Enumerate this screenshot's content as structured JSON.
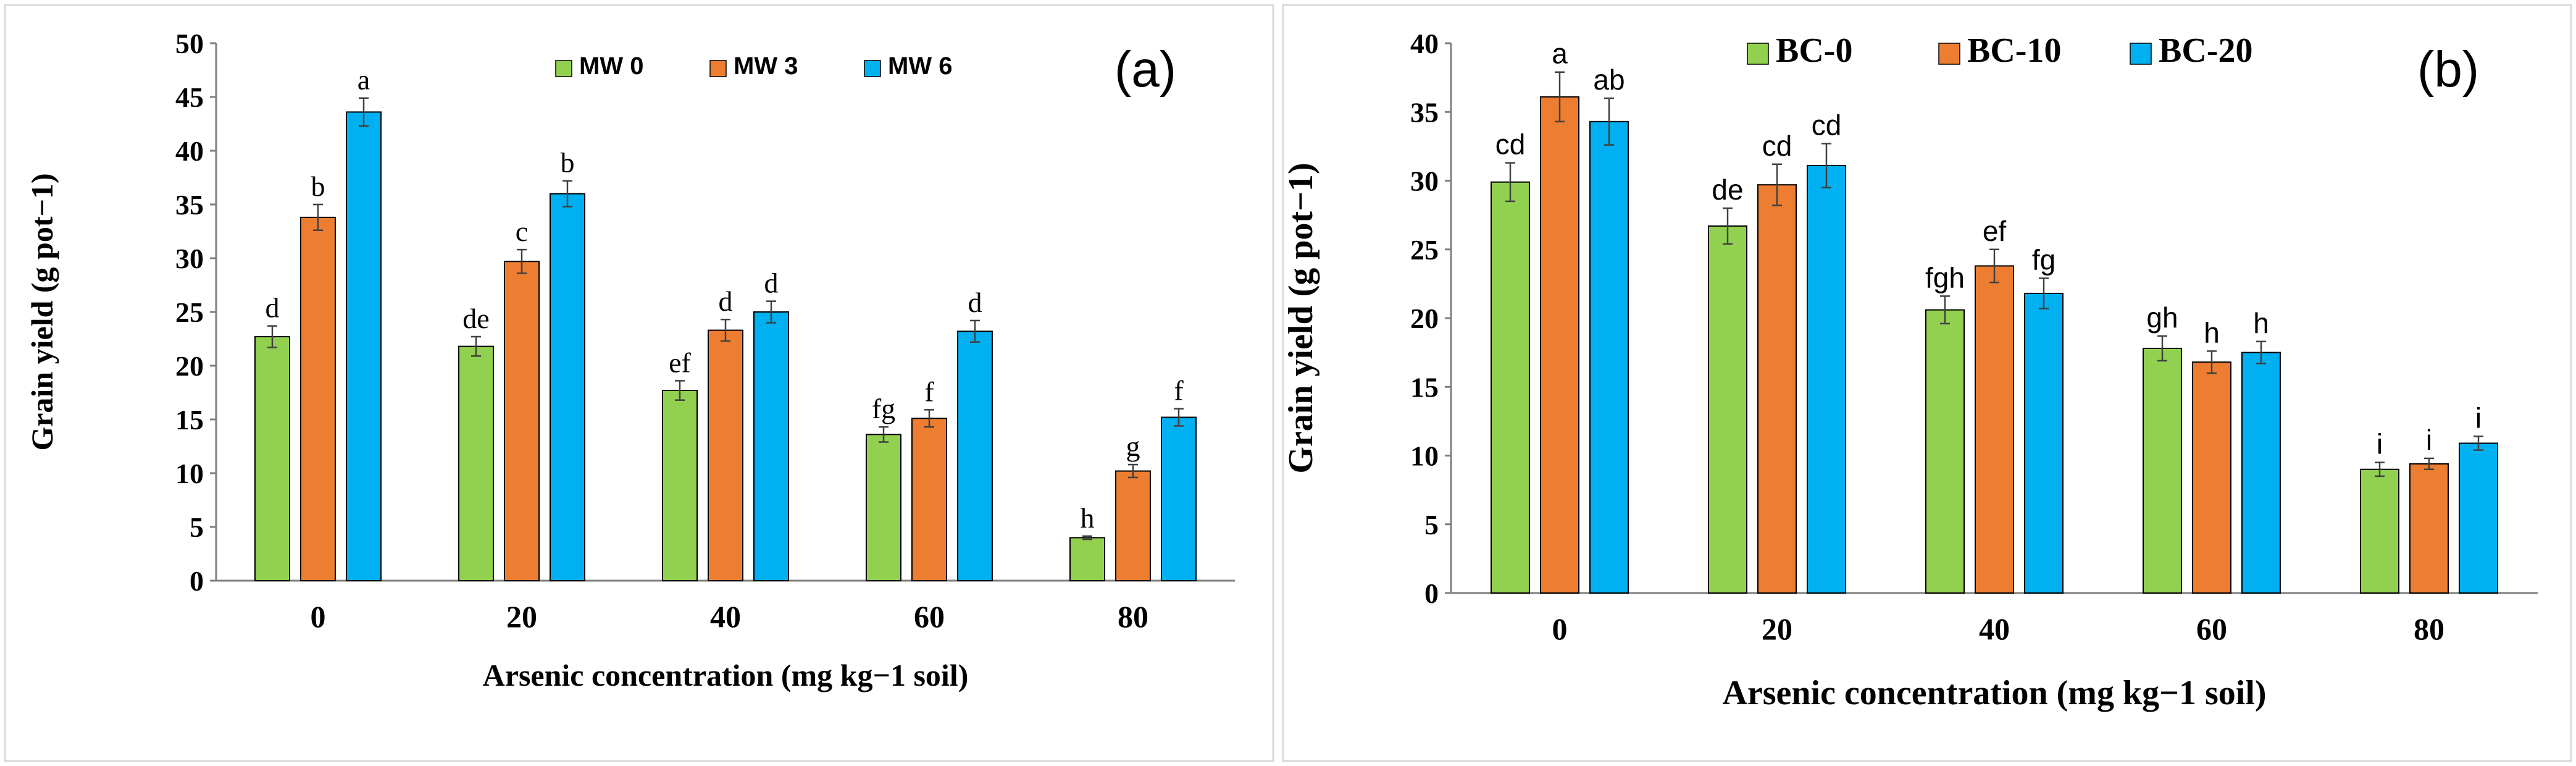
{
  "chart_data": [
    {
      "type": "bar",
      "panel_label": "(a)",
      "xlabel": "Arsenic concentration (mg kg−1 soil)",
      "ylabel": "Grain yield (g pot−1)",
      "categories": [
        "0",
        "20",
        "40",
        "60",
        "80"
      ],
      "ylim": [
        0,
        50
      ],
      "yticks": [
        0,
        5,
        10,
        15,
        20,
        25,
        30,
        35,
        40,
        45,
        50
      ],
      "legend_position": "top",
      "grid": false,
      "series": [
        {
          "name": "MW 0",
          "color": "#92D050",
          "values": [
            22.7,
            21.8,
            17.7,
            13.6,
            4.0
          ],
          "errors": [
            1.0,
            0.9,
            0.9,
            0.7,
            0.15
          ],
          "letters": [
            "d",
            "de",
            "ef",
            "fg",
            "h"
          ]
        },
        {
          "name": "MW 3",
          "color": "#ED7D31",
          "values": [
            33.8,
            29.7,
            23.3,
            15.1,
            10.2
          ],
          "errors": [
            1.2,
            1.1,
            1.0,
            0.8,
            0.6
          ],
          "letters": [
            "b",
            "c",
            "d",
            "f",
            "g"
          ]
        },
        {
          "name": "MW 6",
          "color": "#00B0F0",
          "values": [
            43.6,
            36.0,
            25.0,
            23.2,
            15.2
          ],
          "errors": [
            1.3,
            1.2,
            1.0,
            1.0,
            0.8
          ],
          "letters": [
            "a",
            "b",
            "d",
            "d",
            "f"
          ]
        }
      ]
    },
    {
      "type": "bar",
      "panel_label": "(b)",
      "xlabel": "Arsenic concentration (mg kg−1 soil)",
      "ylabel": "Grain yield (g pot−1)",
      "categories": [
        "0",
        "20",
        "40",
        "60",
        "80"
      ],
      "ylim": [
        0,
        40
      ],
      "yticks": [
        0,
        5,
        10,
        15,
        20,
        25,
        30,
        35,
        40
      ],
      "legend_position": "top",
      "grid": false,
      "series": [
        {
          "name": "BC-0",
          "color": "#92D050",
          "values": [
            29.9,
            26.7,
            20.6,
            17.8,
            9.0
          ],
          "errors": [
            1.4,
            1.3,
            1.0,
            0.9,
            0.5
          ],
          "letters": [
            "cd",
            "de",
            "fgh",
            "gh",
            "i"
          ]
        },
        {
          "name": "BC-10",
          "color": "#ED7D31",
          "values": [
            36.1,
            29.7,
            23.8,
            16.8,
            9.4
          ],
          "errors": [
            1.8,
            1.5,
            1.2,
            0.8,
            0.4
          ],
          "letters": [
            "a",
            "cd",
            "ef",
            "h",
            "i"
          ]
        },
        {
          "name": "BC-20",
          "color": "#00B0F0",
          "values": [
            34.3,
            31.1,
            21.8,
            17.5,
            10.9
          ],
          "errors": [
            1.7,
            1.6,
            1.1,
            0.8,
            0.5
          ],
          "letters": [
            "ab",
            "cd",
            "fg",
            "h",
            "i"
          ]
        }
      ]
    }
  ]
}
